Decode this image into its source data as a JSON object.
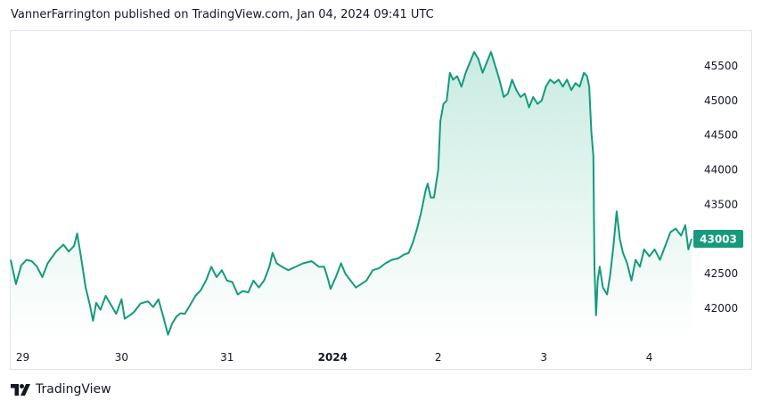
{
  "header": {
    "published_text": "VannerFarrington published on TradingView.com, Jan 04, 2024 09:41 UTC"
  },
  "footer": {
    "brand_label": "TradingView",
    "logo_icon": "tradingview-logo-icon"
  },
  "colors": {
    "line": "#159a7c",
    "fill_top": "#c9ebe1",
    "fill_bottom": "#ffffff",
    "price_label_bg": "#159a7c",
    "axis_text": "#131722",
    "frame": "#e0e3eb"
  },
  "chart_data": {
    "type": "area",
    "title": "",
    "xlabel": "",
    "ylabel": "",
    "x_ticks": [
      {
        "label": "29",
        "t": 0.0,
        "bold": false
      },
      {
        "label": "30",
        "t": 1.0,
        "bold": false
      },
      {
        "label": "31",
        "t": 2.0,
        "bold": false
      },
      {
        "label": "2024",
        "t": 3.0,
        "bold": true
      },
      {
        "label": "2",
        "t": 4.0,
        "bold": false
      },
      {
        "label": "3",
        "t": 5.0,
        "bold": false
      },
      {
        "label": "4",
        "t": 6.0,
        "bold": false
      }
    ],
    "y_ticks": [
      42000,
      42500,
      43000,
      43500,
      44000,
      44500,
      45000,
      45500
    ],
    "ylim": [
      41550,
      46000
    ],
    "xlim": [
      -0.05,
      6.4
    ],
    "last_price_label": "43003",
    "last_price": 43003,
    "series": [
      {
        "points": [
          [
            -0.05,
            42700
          ],
          [
            0.0,
            42350
          ],
          [
            0.05,
            42620
          ],
          [
            0.1,
            42700
          ],
          [
            0.15,
            42680
          ],
          [
            0.2,
            42600
          ],
          [
            0.25,
            42450
          ],
          [
            0.3,
            42650
          ],
          [
            0.38,
            42820
          ],
          [
            0.45,
            42920
          ],
          [
            0.5,
            42820
          ],
          [
            0.55,
            42900
          ],
          [
            0.58,
            43080
          ],
          [
            0.62,
            42700
          ],
          [
            0.66,
            42300
          ],
          [
            0.7,
            42050
          ],
          [
            0.73,
            41820
          ],
          [
            0.76,
            42080
          ],
          [
            0.8,
            41980
          ],
          [
            0.85,
            42180
          ],
          [
            0.9,
            42050
          ],
          [
            0.95,
            41920
          ],
          [
            1.0,
            42130
          ],
          [
            1.03,
            41850
          ],
          [
            1.08,
            41900
          ],
          [
            1.12,
            41950
          ],
          [
            1.18,
            42070
          ],
          [
            1.25,
            42100
          ],
          [
            1.3,
            42020
          ],
          [
            1.35,
            42130
          ],
          [
            1.4,
            41850
          ],
          [
            1.44,
            41620
          ],
          [
            1.48,
            41780
          ],
          [
            1.52,
            41880
          ],
          [
            1.56,
            41930
          ],
          [
            1.6,
            41920
          ],
          [
            1.65,
            42050
          ],
          [
            1.7,
            42180
          ],
          [
            1.75,
            42260
          ],
          [
            1.8,
            42400
          ],
          [
            1.85,
            42600
          ],
          [
            1.9,
            42450
          ],
          [
            1.95,
            42550
          ],
          [
            2.0,
            42400
          ],
          [
            2.05,
            42380
          ],
          [
            2.1,
            42200
          ],
          [
            2.15,
            42250
          ],
          [
            2.2,
            42230
          ],
          [
            2.25,
            42400
          ],
          [
            2.3,
            42300
          ],
          [
            2.35,
            42400
          ],
          [
            2.4,
            42600
          ],
          [
            2.43,
            42800
          ],
          [
            2.47,
            42650
          ],
          [
            2.52,
            42600
          ],
          [
            2.58,
            42550
          ],
          [
            2.65,
            42600
          ],
          [
            2.72,
            42650
          ],
          [
            2.8,
            42680
          ],
          [
            2.87,
            42600
          ],
          [
            2.92,
            42600
          ],
          [
            2.96,
            42400
          ],
          [
            2.98,
            42280
          ],
          [
            3.03,
            42450
          ],
          [
            3.08,
            42650
          ],
          [
            3.12,
            42500
          ],
          [
            3.17,
            42400
          ],
          [
            3.22,
            42300
          ],
          [
            3.27,
            42350
          ],
          [
            3.32,
            42400
          ],
          [
            3.38,
            42550
          ],
          [
            3.44,
            42580
          ],
          [
            3.5,
            42650
          ],
          [
            3.56,
            42700
          ],
          [
            3.62,
            42720
          ],
          [
            3.68,
            42780
          ],
          [
            3.72,
            42800
          ],
          [
            3.76,
            42950
          ],
          [
            3.8,
            43150
          ],
          [
            3.84,
            43400
          ],
          [
            3.88,
            43700
          ],
          [
            3.9,
            43800
          ],
          [
            3.93,
            43600
          ],
          [
            3.96,
            43600
          ],
          [
            4.0,
            44000
          ],
          [
            4.02,
            44700
          ],
          [
            4.05,
            44950
          ],
          [
            4.08,
            45000
          ],
          [
            4.11,
            45400
          ],
          [
            4.14,
            45300
          ],
          [
            4.18,
            45350
          ],
          [
            4.22,
            45200
          ],
          [
            4.26,
            45400
          ],
          [
            4.3,
            45550
          ],
          [
            4.34,
            45700
          ],
          [
            4.38,
            45600
          ],
          [
            4.42,
            45400
          ],
          [
            4.46,
            45550
          ],
          [
            4.5,
            45700
          ],
          [
            4.54,
            45500
          ],
          [
            4.58,
            45300
          ],
          [
            4.62,
            45050
          ],
          [
            4.66,
            45100
          ],
          [
            4.7,
            45300
          ],
          [
            4.74,
            45150
          ],
          [
            4.78,
            45050
          ],
          [
            4.82,
            45100
          ],
          [
            4.86,
            44900
          ],
          [
            4.9,
            45050
          ],
          [
            4.94,
            44950
          ],
          [
            4.98,
            45000
          ],
          [
            5.02,
            45200
          ],
          [
            5.06,
            45300
          ],
          [
            5.1,
            45250
          ],
          [
            5.14,
            45300
          ],
          [
            5.18,
            45200
          ],
          [
            5.22,
            45300
          ],
          [
            5.26,
            45150
          ],
          [
            5.3,
            45250
          ],
          [
            5.34,
            45200
          ],
          [
            5.38,
            45400
          ],
          [
            5.41,
            45350
          ],
          [
            5.43,
            45200
          ],
          [
            5.45,
            44550
          ],
          [
            5.47,
            44200
          ],
          [
            5.48,
            42600
          ],
          [
            5.495,
            41900
          ],
          [
            5.51,
            42400
          ],
          [
            5.53,
            42600
          ],
          [
            5.56,
            42300
          ],
          [
            5.6,
            42200
          ],
          [
            5.63,
            42500
          ],
          [
            5.66,
            42900
          ],
          [
            5.69,
            43400
          ],
          [
            5.72,
            43000
          ],
          [
            5.75,
            42800
          ],
          [
            5.79,
            42650
          ],
          [
            5.83,
            42400
          ],
          [
            5.87,
            42700
          ],
          [
            5.91,
            42600
          ],
          [
            5.95,
            42850
          ],
          [
            6.0,
            42750
          ],
          [
            6.05,
            42850
          ],
          [
            6.1,
            42700
          ],
          [
            6.15,
            42900
          ],
          [
            6.2,
            43100
          ],
          [
            6.25,
            43150
          ],
          [
            6.3,
            43050
          ],
          [
            6.34,
            43200
          ],
          [
            6.37,
            42850
          ],
          [
            6.4,
            43003
          ]
        ]
      }
    ],
    "grid": false,
    "legend": "none"
  }
}
